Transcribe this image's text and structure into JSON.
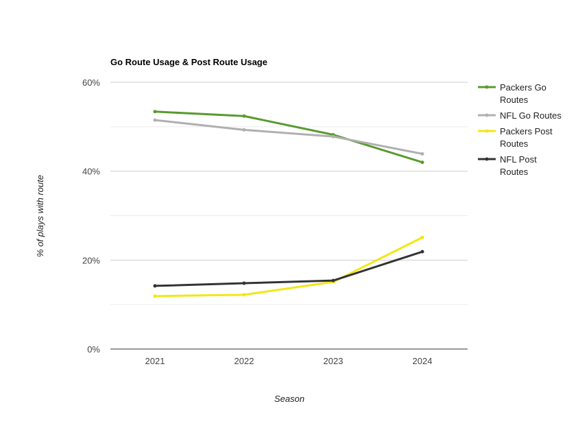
{
  "chart_data": {
    "type": "line",
    "title": "Go Route Usage & Post Route Usage",
    "xlabel": "Season",
    "ylabel": "% of plays with route",
    "categories": [
      "2021",
      "2022",
      "2023",
      "2024"
    ],
    "ylim": [
      0,
      60
    ],
    "yticks": [
      {
        "value": 0,
        "label": "0%"
      },
      {
        "value": 20,
        "label": "20%"
      },
      {
        "value": 40,
        "label": "40%"
      },
      {
        "value": 60,
        "label": "60%"
      }
    ],
    "minor_grid": [
      10,
      30,
      50
    ],
    "grid": true,
    "legend_position": "right",
    "series": [
      {
        "name": "Packers Go Routes",
        "legend_lines": [
          "Packers Go",
          "Routes"
        ],
        "color": "#5a9a2e",
        "values": [
          53.4,
          52.4,
          48.2,
          42.0
        ]
      },
      {
        "name": "NFL Go Routes",
        "legend_lines": [
          "NFL Go Routes"
        ],
        "color": "#b0b0b0",
        "values": [
          51.5,
          49.3,
          47.8,
          43.9
        ]
      },
      {
        "name": "Packers Post Routes",
        "legend_lines": [
          "Packers Post",
          "Routes"
        ],
        "color": "#f0e814",
        "values": [
          11.9,
          12.2,
          15.1,
          25.1
        ]
      },
      {
        "name": "NFL Post Routes",
        "legend_lines": [
          "NFL Post",
          "Routes"
        ],
        "color": "#333333",
        "values": [
          14.2,
          14.8,
          15.4,
          21.9
        ]
      }
    ]
  }
}
